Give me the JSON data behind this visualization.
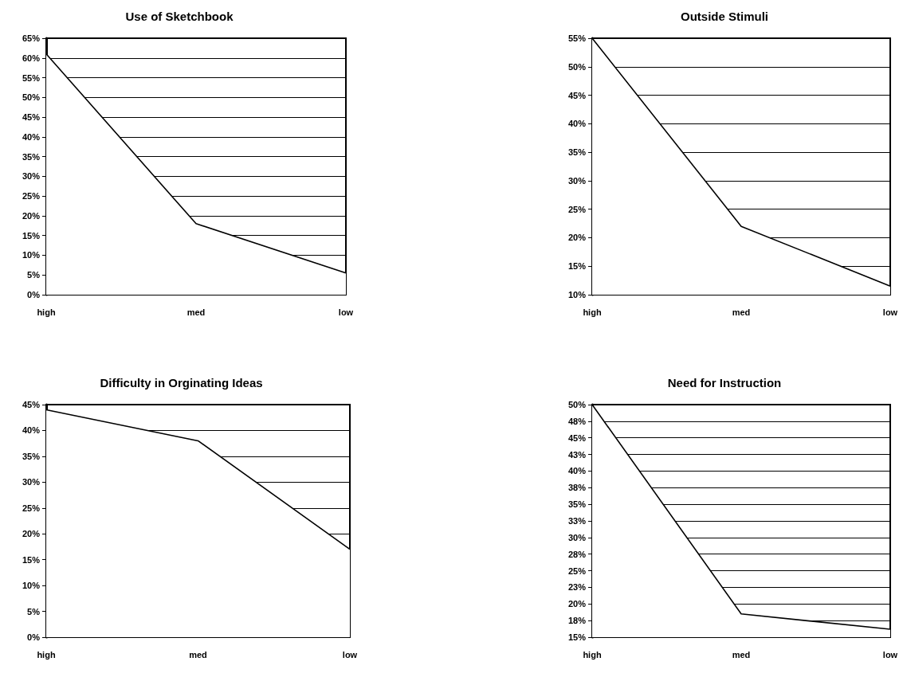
{
  "chart_data": [
    {
      "type": "area",
      "title": "Use of Sketchbook",
      "categories": [
        "high",
        "med",
        "low"
      ],
      "values": [
        61,
        18,
        5.5
      ],
      "color": "#000000",
      "ylim": [
        0,
        65
      ],
      "yticks": [
        {
          "value": 0,
          "label": "0%"
        },
        {
          "value": 5,
          "label": "5%"
        },
        {
          "value": 10,
          "label": "10%"
        },
        {
          "value": 15,
          "label": "15%"
        },
        {
          "value": 20,
          "label": "20%"
        },
        {
          "value": 25,
          "label": "25%"
        },
        {
          "value": 30,
          "label": "30%"
        },
        {
          "value": 35,
          "label": "35%"
        },
        {
          "value": 40,
          "label": "40%"
        },
        {
          "value": 45,
          "label": "45%"
        },
        {
          "value": 50,
          "label": "50%"
        },
        {
          "value": 55,
          "label": "55%"
        },
        {
          "value": 60,
          "label": "60%"
        },
        {
          "value": 65,
          "label": "65%"
        }
      ],
      "grid": "y"
    },
    {
      "type": "area",
      "title": "Outside Stimuli",
      "categories": [
        "high",
        "med",
        "low"
      ],
      "values": [
        55,
        22,
        11.5
      ],
      "color": "#000000",
      "ylim": [
        10,
        55
      ],
      "yticks": [
        {
          "value": 10,
          "label": "10%"
        },
        {
          "value": 15,
          "label": "15%"
        },
        {
          "value": 20,
          "label": "20%"
        },
        {
          "value": 25,
          "label": "25%"
        },
        {
          "value": 30,
          "label": "30%"
        },
        {
          "value": 35,
          "label": "35%"
        },
        {
          "value": 40,
          "label": "40%"
        },
        {
          "value": 45,
          "label": "45%"
        },
        {
          "value": 50,
          "label": "50%"
        },
        {
          "value": 55,
          "label": "55%"
        }
      ],
      "grid": "y"
    },
    {
      "type": "area",
      "title": "Difficulty in Orginating Ideas",
      "categories": [
        "high",
        "med",
        "low"
      ],
      "values": [
        44,
        38,
        17
      ],
      "color": "#000000",
      "ylim": [
        0,
        45
      ],
      "yticks": [
        {
          "value": 0,
          "label": "0%"
        },
        {
          "value": 5,
          "label": "5%"
        },
        {
          "value": 10,
          "label": "10%"
        },
        {
          "value": 15,
          "label": "15%"
        },
        {
          "value": 20,
          "label": "20%"
        },
        {
          "value": 25,
          "label": "25%"
        },
        {
          "value": 30,
          "label": "30%"
        },
        {
          "value": 35,
          "label": "35%"
        },
        {
          "value": 40,
          "label": "40%"
        },
        {
          "value": 45,
          "label": "45%"
        }
      ],
      "grid": "y"
    },
    {
      "type": "area",
      "title": "Need for Instruction",
      "categories": [
        "high",
        "med",
        "low"
      ],
      "values": [
        50,
        18.5,
        16.2
      ],
      "color": "#000000",
      "ylim": [
        15,
        50
      ],
      "yticks": [
        {
          "value": 15,
          "label": "15%"
        },
        {
          "value": 17.5,
          "label": "18%"
        },
        {
          "value": 20,
          "label": "20%"
        },
        {
          "value": 22.5,
          "label": "23%"
        },
        {
          "value": 25,
          "label": "25%"
        },
        {
          "value": 27.5,
          "label": "28%"
        },
        {
          "value": 30,
          "label": "30%"
        },
        {
          "value": 32.5,
          "label": "33%"
        },
        {
          "value": 35,
          "label": "35%"
        },
        {
          "value": 37.5,
          "label": "38%"
        },
        {
          "value": 40,
          "label": "40%"
        },
        {
          "value": 42.5,
          "label": "43%"
        },
        {
          "value": 45,
          "label": "45%"
        },
        {
          "value": 47.5,
          "label": "48%"
        },
        {
          "value": 50,
          "label": "50%"
        }
      ],
      "grid": "y"
    }
  ]
}
